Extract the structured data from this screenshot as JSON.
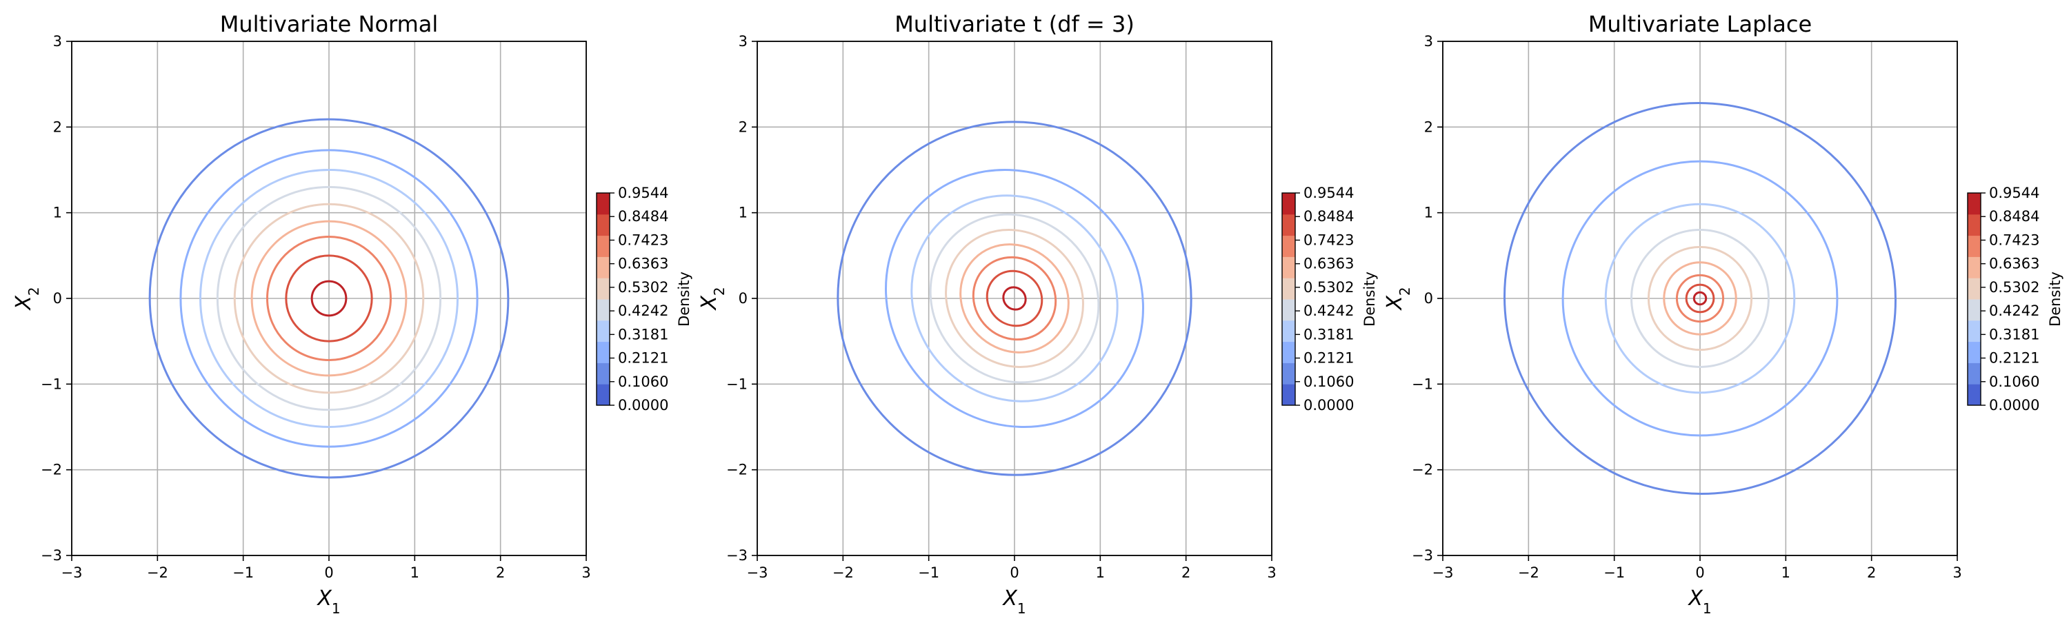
{
  "chart_data": [
    {
      "type": "contour",
      "title": "Multivariate Normal",
      "xlabel_base": "X",
      "xlabel_sub": "1",
      "ylabel_base": "X",
      "ylabel_sub": "2",
      "xlim": [
        -3,
        3
      ],
      "ylim": [
        -3,
        3
      ],
      "xticks": [
        "−3",
        "−2",
        "−1",
        "0",
        "1",
        "2",
        "3"
      ],
      "yticks": [
        "−3",
        "−2",
        "−1",
        "0",
        "1",
        "2",
        "3"
      ],
      "grid": true,
      "contours": [
        {
          "level": 0.106,
          "x_extent": [
            -2.09,
            2.09
          ],
          "y_extent": [
            -2.1,
            2.1
          ]
        },
        {
          "level": 0.2121,
          "x_extent": [
            -1.73,
            1.73
          ],
          "y_extent": [
            -1.73,
            1.73
          ]
        },
        {
          "level": 0.3181,
          "x_extent": [
            -1.5,
            1.5
          ],
          "y_extent": [
            -1.5,
            1.5
          ]
        },
        {
          "level": 0.4242,
          "x_extent": [
            -1.3,
            1.3
          ],
          "y_extent": [
            -1.3,
            1.3
          ]
        },
        {
          "level": 0.5302,
          "x_extent": [
            -1.1,
            1.1
          ],
          "y_extent": [
            -1.1,
            1.1
          ]
        },
        {
          "level": 0.6363,
          "x_extent": [
            -0.9,
            0.9
          ],
          "y_extent": [
            -0.9,
            0.9
          ]
        },
        {
          "level": 0.7423,
          "x_extent": [
            -0.72,
            0.72
          ],
          "y_extent": [
            -0.72,
            0.72
          ]
        },
        {
          "level": 0.8484,
          "x_extent": [
            -0.5,
            0.5
          ],
          "y_extent": [
            -0.5,
            0.5
          ]
        },
        {
          "level": 0.9544,
          "x_extent": [
            -0.2,
            0.2
          ],
          "y_extent": [
            -0.2,
            0.2
          ]
        }
      ],
      "colorbar": {
        "label": "Density",
        "ticks": [
          "0.0000",
          "0.1060",
          "0.2121",
          "0.3181",
          "0.4242",
          "0.5302",
          "0.6363",
          "0.7423",
          "0.8484",
          "0.9544"
        ],
        "colors": [
          "#4a63d3",
          "#6a8be6",
          "#8db0fe",
          "#b2ccfb",
          "#d4dbe6",
          "#ebd0c0",
          "#f5b59a",
          "#ee8468",
          "#d9513f",
          "#be2327"
        ]
      }
    },
    {
      "type": "contour",
      "title": "Multivariate t (df = 3)",
      "xlabel_base": "X",
      "xlabel_sub": "1",
      "ylabel_base": "X",
      "ylabel_sub": "2",
      "xlim": [
        -3,
        3
      ],
      "ylim": [
        -3,
        3
      ],
      "xticks": [
        "−3",
        "−2",
        "−1",
        "0",
        "1",
        "2",
        "3"
      ],
      "yticks": [
        "−3",
        "−2",
        "−1",
        "0",
        "1",
        "2",
        "3"
      ],
      "grid": true,
      "contours": [
        {
          "level": 0.106,
          "x_extent": [
            -2.06,
            2.06
          ],
          "y_extent": [
            -2.07,
            2.07
          ]
        },
        {
          "level": 0.2121,
          "x_extent": [
            -1.5,
            1.5
          ],
          "y_extent": [
            -1.6,
            1.6
          ]
        },
        {
          "level": 0.3181,
          "x_extent": [
            -1.2,
            1.2
          ],
          "y_extent": [
            -1.28,
            1.28
          ]
        },
        {
          "level": 0.4242,
          "x_extent": [
            -0.98,
            0.98
          ],
          "y_extent": [
            -1.05,
            1.05
          ]
        },
        {
          "level": 0.5302,
          "x_extent": [
            -0.8,
            0.8
          ],
          "y_extent": [
            -0.86,
            0.86
          ]
        },
        {
          "level": 0.6363,
          "x_extent": [
            -0.63,
            0.63
          ],
          "y_extent": [
            -0.68,
            0.68
          ]
        },
        {
          "level": 0.7423,
          "x_extent": [
            -0.48,
            0.48
          ],
          "y_extent": [
            -0.51,
            0.51
          ]
        },
        {
          "level": 0.8484,
          "x_extent": [
            -0.32,
            0.32
          ],
          "y_extent": [
            -0.34,
            0.34
          ]
        },
        {
          "level": 0.9544,
          "x_extent": [
            -0.13,
            0.13
          ],
          "y_extent": [
            -0.14,
            0.14
          ]
        }
      ],
      "colorbar": {
        "label": "Density",
        "ticks": [
          "0.0000",
          "0.1060",
          "0.2121",
          "0.3181",
          "0.4242",
          "0.5302",
          "0.6363",
          "0.7423",
          "0.8484",
          "0.9544"
        ],
        "colors": [
          "#4a63d3",
          "#6a8be6",
          "#8db0fe",
          "#b2ccfb",
          "#d4dbe6",
          "#ebd0c0",
          "#f5b59a",
          "#ee8468",
          "#d9513f",
          "#be2327"
        ]
      }
    },
    {
      "type": "contour",
      "title": "Multivariate Laplace",
      "xlabel_base": "X",
      "xlabel_sub": "1",
      "ylabel_base": "X",
      "ylabel_sub": "2",
      "xlim": [
        -3,
        3
      ],
      "ylim": [
        -3,
        3
      ],
      "xticks": [
        "−3",
        "−2",
        "−1",
        "0",
        "1",
        "2",
        "3"
      ],
      "yticks": [
        "−3",
        "−2",
        "−1",
        "0",
        "1",
        "2",
        "3"
      ],
      "grid": true,
      "contours": [
        {
          "level": 0.106,
          "x_extent": [
            -2.28,
            2.28
          ],
          "y_extent": [
            -2.3,
            2.3
          ]
        },
        {
          "level": 0.2121,
          "x_extent": [
            -1.6,
            1.6
          ],
          "y_extent": [
            -1.6,
            1.6
          ]
        },
        {
          "level": 0.3181,
          "x_extent": [
            -1.1,
            1.1
          ],
          "y_extent": [
            -1.1,
            1.1
          ]
        },
        {
          "level": 0.4242,
          "x_extent": [
            -0.8,
            0.8
          ],
          "y_extent": [
            -0.8,
            0.8
          ]
        },
        {
          "level": 0.5302,
          "x_extent": [
            -0.6,
            0.6
          ],
          "y_extent": [
            -0.6,
            0.6
          ]
        },
        {
          "level": 0.6363,
          "x_extent": [
            -0.42,
            0.42
          ],
          "y_extent": [
            -0.42,
            0.42
          ]
        },
        {
          "level": 0.7423,
          "x_extent": [
            -0.27,
            0.27
          ],
          "y_extent": [
            -0.27,
            0.27
          ]
        },
        {
          "level": 0.8484,
          "x_extent": [
            -0.16,
            0.16
          ],
          "y_extent": [
            -0.16,
            0.16
          ]
        },
        {
          "level": 0.9544,
          "x_extent": [
            -0.07,
            0.07
          ],
          "y_extent": [
            -0.07,
            0.07
          ]
        }
      ],
      "colorbar": {
        "label": "Density",
        "ticks": [
          "0.0000",
          "0.1060",
          "0.2121",
          "0.3181",
          "0.4242",
          "0.5302",
          "0.6363",
          "0.7423",
          "0.8484",
          "0.9544"
        ],
        "colors": [
          "#4a63d3",
          "#6a8be6",
          "#8db0fe",
          "#b2ccfb",
          "#d4dbe6",
          "#ebd0c0",
          "#f5b59a",
          "#ee8468",
          "#d9513f",
          "#be2327"
        ]
      }
    }
  ]
}
